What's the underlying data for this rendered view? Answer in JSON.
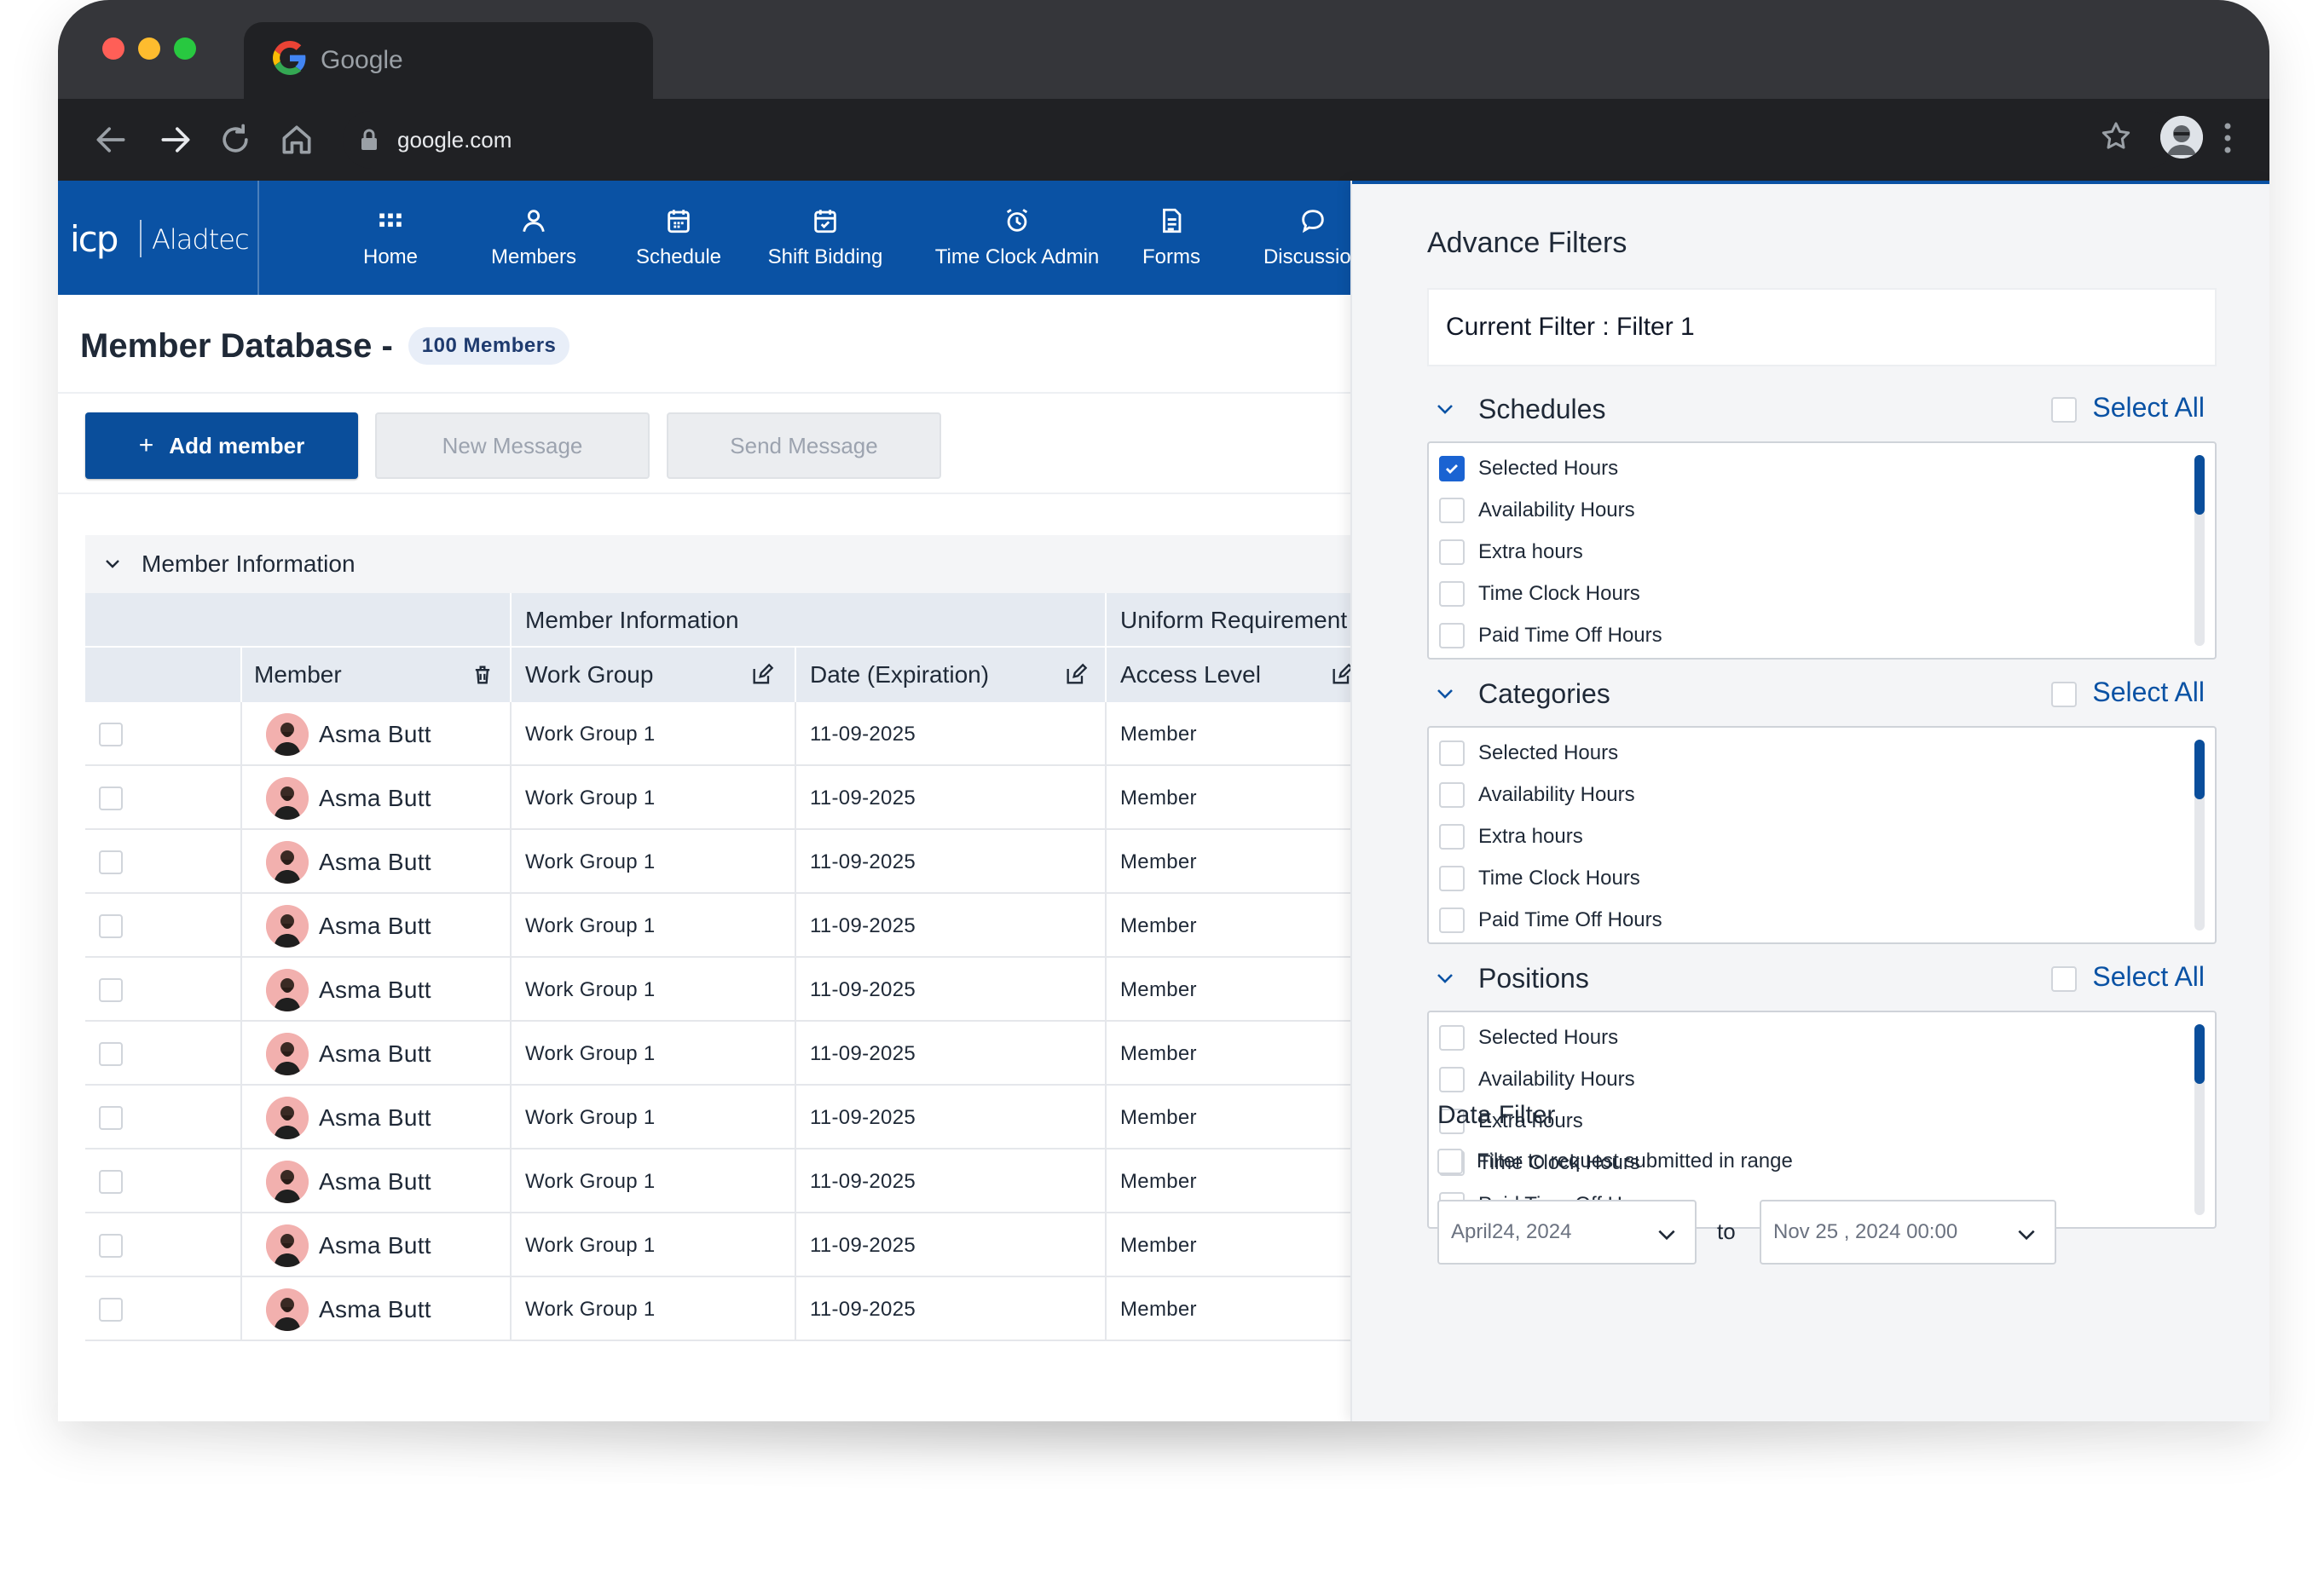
{
  "browser": {
    "tab_title": "Google",
    "url": "google.com"
  },
  "app": {
    "brand_short": "icp",
    "brand_name": "Aladtec",
    "nav": [
      {
        "label": "Home",
        "icon": "grid-icon"
      },
      {
        "label": "Members",
        "icon": "person-icon"
      },
      {
        "label": "Schedule",
        "icon": "calendar-icon"
      },
      {
        "label": "Shift Bidding",
        "icon": "calendar-check-icon"
      },
      {
        "label": "Time Clock Admin",
        "icon": "alarm-icon"
      },
      {
        "label": "Forms",
        "icon": "document-icon"
      },
      {
        "label": "Discussion",
        "icon": "chat-bubble-icon"
      }
    ],
    "accent": "#0a52a4"
  },
  "page": {
    "title": "Member Database -",
    "count_badge": "100 Members",
    "add_member_label": "Add member",
    "new_message_label": "New Message",
    "send_message_label": "Send Message",
    "section_label": "Member Information"
  },
  "table": {
    "group_headers": [
      "Member Information",
      "Uniform Requirement"
    ],
    "columns": [
      "Member",
      "Work Group",
      "Date (Expiration)",
      "Access Level"
    ],
    "rows": [
      {
        "member": "Asma Butt",
        "work_group": "Work Group 1",
        "date": "11-09-2025",
        "access": "Member"
      },
      {
        "member": "Asma Butt",
        "work_group": "Work Group 1",
        "date": "11-09-2025",
        "access": "Member"
      },
      {
        "member": "Asma Butt",
        "work_group": "Work Group 1",
        "date": "11-09-2025",
        "access": "Member"
      },
      {
        "member": "Asma Butt",
        "work_group": "Work Group 1",
        "date": "11-09-2025",
        "access": "Member"
      },
      {
        "member": "Asma Butt",
        "work_group": "Work Group 1",
        "date": "11-09-2025",
        "access": "Member"
      },
      {
        "member": "Asma Butt",
        "work_group": "Work Group 1",
        "date": "11-09-2025",
        "access": "Member"
      },
      {
        "member": "Asma Butt",
        "work_group": "Work Group 1",
        "date": "11-09-2025",
        "access": "Member"
      },
      {
        "member": "Asma Butt",
        "work_group": "Work Group 1",
        "date": "11-09-2025",
        "access": "Member"
      },
      {
        "member": "Asma Butt",
        "work_group": "Work Group 1",
        "date": "11-09-2025",
        "access": "Member"
      },
      {
        "member": "Asma Butt",
        "work_group": "Work Group 1",
        "date": "11-09-2025",
        "access": "Member"
      }
    ]
  },
  "filters": {
    "title": "Advance Filters",
    "current_filter": "Current Filter : Filter 1",
    "select_all_label": "Select All",
    "groups": [
      {
        "title": "Schedules",
        "items": [
          {
            "label": "Selected Hours",
            "checked": true
          },
          {
            "label": "Availability Hours",
            "checked": false
          },
          {
            "label": "Extra hours",
            "checked": false
          },
          {
            "label": "Time Clock Hours",
            "checked": false
          },
          {
            "label": "Paid Time Off Hours",
            "checked": false
          }
        ]
      },
      {
        "title": "Categories",
        "items": [
          {
            "label": "Selected Hours",
            "checked": false
          },
          {
            "label": "Availability Hours",
            "checked": false
          },
          {
            "label": "Extra hours",
            "checked": false
          },
          {
            "label": "Time Clock Hours",
            "checked": false
          },
          {
            "label": "Paid Time Off Hours",
            "checked": false
          }
        ]
      },
      {
        "title": "Positions",
        "items": [
          {
            "label": "Selected Hours",
            "checked": false
          },
          {
            "label": "Availability Hours",
            "checked": false
          },
          {
            "label": "Extra hours",
            "checked": false
          },
          {
            "label": "Time Clock Hours",
            "checked": false
          },
          {
            "label": "Paid Time Off Hours",
            "checked": false
          }
        ]
      }
    ],
    "data_filter": {
      "title": "Data Filter",
      "range_label": "Filter to request submitted in range",
      "from": "April24, 2024",
      "to_label": "to",
      "to": "Nov 25 , 2024 00:00"
    }
  }
}
